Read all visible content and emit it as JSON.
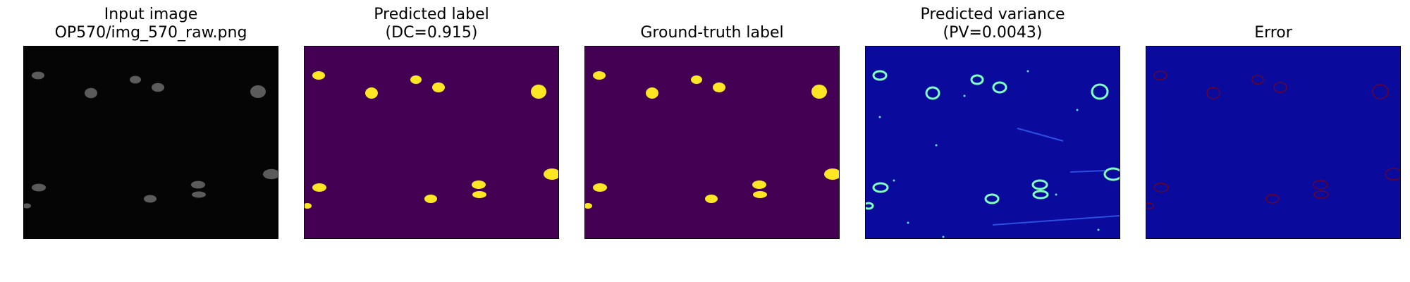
{
  "panels": [
    {
      "title_line1": "Input image",
      "title_line2": "OP570/img_570_raw.png",
      "type": "input-image",
      "background": "#050505",
      "mark_color": "#6b6b6b"
    },
    {
      "title_line1": "Predicted label",
      "title_line2": "(DC=0.915)",
      "type": "predicted-label",
      "background": "#440154",
      "mark_color": "#fde725"
    },
    {
      "title_line1": "",
      "title_line2": "Ground-truth label",
      "type": "ground-truth-label",
      "background": "#440154",
      "mark_color": "#fde725"
    },
    {
      "title_line1": "Predicted variance",
      "title_line2": "(PV=0.0043)",
      "type": "predicted-variance",
      "background": "#0a0a9c",
      "mark_color": "#7fffbf"
    },
    {
      "title_line1": "",
      "title_line2": "Error",
      "type": "error",
      "background": "#0a0a9c",
      "mark_color": "#8b0000"
    }
  ]
}
